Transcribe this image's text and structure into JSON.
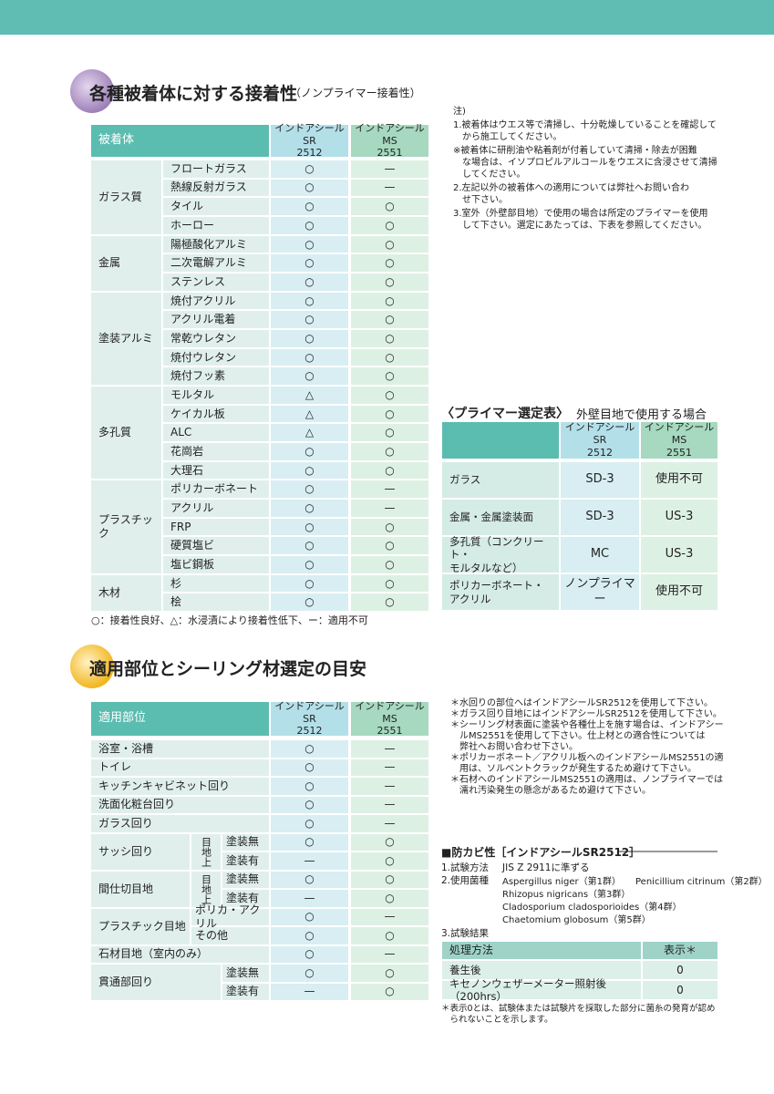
{
  "section1": {
    "title": "各種被着体に対する接着性",
    "subtitle": "（ノンプライマー接着性）",
    "table": {
      "headers": [
        "被着体",
        "インドアシールSR\n2512",
        "インドアシールMS\n2551"
      ],
      "groups": [
        {
          "name": "ガラス質",
          "rows": [
            [
              "フロートガラス",
              "○",
              "—"
            ],
            [
              "熱線反射ガラス",
              "○",
              "—"
            ],
            [
              "タイル",
              "○",
              "○"
            ],
            [
              "ホーロー",
              "○",
              "○"
            ]
          ]
        },
        {
          "name": "金属",
          "rows": [
            [
              "陽極酸化アルミ",
              "○",
              "○"
            ],
            [
              "二次電解アルミ",
              "○",
              "○"
            ],
            [
              "ステンレス",
              "○",
              "○"
            ]
          ]
        },
        {
          "name": "塗装アルミ",
          "rows": [
            [
              "焼付アクリル",
              "○",
              "○"
            ],
            [
              "アクリル電着",
              "○",
              "○"
            ],
            [
              "常乾ウレタン",
              "○",
              "○"
            ],
            [
              "焼付ウレタン",
              "○",
              "○"
            ],
            [
              "焼付フッ素",
              "○",
              "○"
            ]
          ]
        },
        {
          "name": "多孔質",
          "rows": [
            [
              "モルタル",
              "△",
              "○"
            ],
            [
              "ケイカル板",
              "△",
              "○"
            ],
            [
              "ALC",
              "△",
              "○"
            ],
            [
              "花崗岩",
              "○",
              "○"
            ],
            [
              "大理石",
              "○",
              "○"
            ]
          ]
        },
        {
          "name": "プラスチック",
          "rows": [
            [
              "ポリカーボネート",
              "○",
              "—"
            ],
            [
              "アクリル",
              "○",
              "—"
            ],
            [
              "FRP",
              "○",
              "○"
            ],
            [
              "硬質塩ビ",
              "○",
              "○"
            ],
            [
              "塩ビ鋼板",
              "○",
              "○"
            ]
          ]
        },
        {
          "name": "木材",
          "rows": [
            [
              "杉",
              "○",
              "○"
            ],
            [
              "桧",
              "○",
              "○"
            ]
          ]
        }
      ]
    },
    "legend": "○：接着性良好、△：水浸漬により接着性低下、ー：適用不可",
    "notes": [
      "注)",
      "1.被着体はウエス等で清掃し、十分乾燥していることを確認して\n　から施工してください。",
      "※被着体に研削油や粘着剤が付着していて清掃・除去が困難\n　な場合は、イソプロピルアルコールをウエスに含浸させて清掃\n　してください。",
      "2.左記以外の被着体への適用については弊社へお問い合わ\n　せ下さい。",
      "3.室外（外壁部目地）で使用の場合は所定のプライマーを使用\n　して下さい。選定にあたっては、下表を参照してください。"
    ]
  },
  "primer_table": {
    "title": "〈プライマー選定表〉",
    "subtitle": "外壁目地で使用する場合",
    "headers": [
      "インドアシールSR\n2512",
      "インドアシールMS\n2551"
    ],
    "rows": [
      [
        "ガラス",
        "SD-3",
        "使用不可"
      ],
      [
        "金属・金属塗装面",
        "SD-3",
        "US-3"
      ],
      [
        "多孔質（コンクリート・\nモルタルなど）",
        "MC",
        "US-3"
      ],
      [
        "ポリカーボネート・\nアクリル",
        "ノンプライマー",
        "使用不可"
      ]
    ]
  },
  "section2": {
    "title": "適用部位とシーリング材選定の目安",
    "table": {
      "headers": [
        "適用部位",
        "インドアシールSR\n2512",
        "インドアシールMS\n2551"
      ],
      "groups": [
        {
          "name": "浴室・浴槽",
          "values": [
            "○",
            "—"
          ]
        },
        {
          "name": "トイレ",
          "values": [
            "○",
            "—"
          ]
        },
        {
          "name": "キッチンキャビネット回り",
          "values": [
            "○",
            "—"
          ]
        },
        {
          "name": "洗面化粧台回り",
          "values": [
            "○",
            "—"
          ]
        },
        {
          "name": "ガラス回り",
          "values": [
            "○",
            "—"
          ]
        },
        {
          "name": "サッシ回り",
          "sub": "目地上",
          "rows": [
            [
              "塗装無",
              "○",
              "○"
            ],
            [
              "塗装有",
              "—",
              "○"
            ]
          ]
        },
        {
          "name": "間仕切目地",
          "sub": "目地上",
          "rows": [
            [
              "塗装無",
              "○",
              "○"
            ],
            [
              "塗装有",
              "—",
              "○"
            ]
          ]
        },
        {
          "name": "プラスチック目地",
          "rows": [
            [
              "ポリカ・アクリル",
              "○",
              "—"
            ],
            [
              "その他",
              "○",
              "○"
            ]
          ]
        },
        {
          "name": "石材目地（室内のみ）",
          "values": [
            "○",
            "—"
          ]
        },
        {
          "name": "貫通部回り",
          "rows": [
            [
              "塗装無",
              "○",
              "○"
            ],
            [
              "塗装有",
              "—",
              "○"
            ]
          ]
        }
      ]
    },
    "notes": [
      "＊水回りの部位へはインドアシールSR2512を使用して下さい。",
      "＊ガラス回り目地にはインドアシールSR2512を使用して下さい。",
      "＊シーリング材表面に塗装や各種仕上を施す場合は、インドアシー\n　ルMS2551を使用して下さい。仕上材との適合性については\n　弊社へお問い合わせ下さい。",
      "＊ポリカーボネート／アクリル板へのインドアシールMS2551の適\n　用は、ソルベントクラックが発生するため避けて下さい。",
      "＊石材へのインドアシールMS2551の適用は、ノンプライマーでは\n　濡れ汚染発生の懸念があるため避けて下さい。"
    ]
  },
  "mold": {
    "title": "■防カビ性［インドアシールSR2512］",
    "items": [
      {
        "label": "1.試験方法",
        "text": "JIS Z 2911に準ずる"
      },
      {
        "label": "2.使用菌種",
        "species": [
          "Aspergillus niger（第1群）",
          "Penicillium citrinum（第2群）",
          "Rhizopus nigricans（第3群）",
          "Cladosporium cladosporioides（第4群）",
          "Chaetomium globosum（第5群）"
        ]
      },
      {
        "label": "3.試験結果"
      }
    ],
    "table": {
      "headers": [
        "処理方法",
        "表示＊"
      ],
      "rows": [
        [
          "養生後",
          0
        ],
        [
          "キセノンウェザーメーター照射後（200hrs）",
          0
        ]
      ]
    },
    "footnote": "＊表示0とは、試験体または試験片を採取した部分に菌糸の発育が認め\n　られないことを示します。"
  }
}
